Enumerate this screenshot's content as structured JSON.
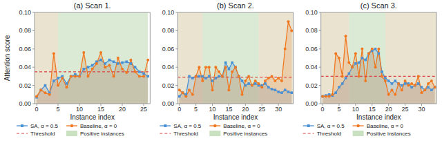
{
  "chart_data": [
    {
      "type": "line",
      "title": "(a) Scan 1.",
      "x_label": "Instance index",
      "y_label": "Attention score",
      "x": [
        0,
        1,
        2,
        3,
        4,
        5,
        6,
        7,
        8,
        9,
        10,
        11,
        12,
        13,
        14,
        15,
        16,
        17,
        18,
        19,
        20,
        21,
        22,
        23,
        24,
        25,
        26
      ],
      "series": [
        {
          "name": "SA, α = 0.5",
          "color": "#4a90d4",
          "marker": "square",
          "values": [
            0.007,
            0.015,
            0.02,
            0.012,
            0.025,
            0.028,
            0.03,
            0.022,
            0.03,
            0.032,
            0.03,
            0.038,
            0.04,
            0.042,
            0.046,
            0.048,
            0.044,
            0.048,
            0.046,
            0.044,
            0.045,
            0.046,
            0.044,
            0.04,
            0.035,
            0.033,
            0.03
          ]
        },
        {
          "name": "Baseline, α = 0",
          "color": "#f07820",
          "marker": "circle",
          "values": [
            0.008,
            0.015,
            0.012,
            0.01,
            0.055,
            0.02,
            0.028,
            0.018,
            0.03,
            0.03,
            0.03,
            0.056,
            0.03,
            0.038,
            0.044,
            0.056,
            0.04,
            0.042,
            0.03,
            0.05,
            0.038,
            0.034,
            0.048,
            0.035,
            0.03,
            0.03,
            0.048
          ]
        }
      ],
      "hlines": [
        {
          "name": "Threshold",
          "value": 0.035,
          "color": "#d94040",
          "line_style": "dashed"
        }
      ],
      "regions": [
        {
          "start": -0.5,
          "end": 5,
          "color": "#c8b888"
        },
        {
          "name": "Positive instances",
          "start": 5,
          "end": 26,
          "color": "#9dc88d"
        }
      ],
      "xlim": [
        -0.5,
        26.5
      ],
      "xticks": [
        0,
        5,
        10,
        15,
        20,
        25
      ],
      "ylim": [
        0.0,
        0.1
      ],
      "yticks": [
        {
          "value": 0.0,
          "label": "0.00"
        },
        {
          "value": 0.02,
          "label": "0.02"
        },
        {
          "value": 0.04,
          "label": "0.04"
        },
        {
          "value": 0.06,
          "label": "0.06"
        },
        {
          "value": 0.08,
          "label": "0.08"
        },
        {
          "value": 0.1,
          "label": "0.10"
        }
      ],
      "grid": false,
      "legend": "bottom"
    },
    {
      "type": "line",
      "title": "(b) Scan 2.",
      "x_label": "Instance index",
      "x": [
        0,
        1,
        2,
        3,
        4,
        5,
        6,
        7,
        8,
        9,
        10,
        11,
        12,
        13,
        14,
        15,
        16,
        17,
        18,
        19,
        20,
        21,
        22,
        23,
        24,
        25,
        26,
        27,
        28,
        29,
        30,
        31,
        32,
        33,
        34
      ],
      "series": [
        {
          "name": "SA, α = 0.5",
          "color": "#4a90d4",
          "marker": "square",
          "values": [
            0.008,
            0.012,
            0.01,
            0.03,
            0.028,
            0.03,
            0.03,
            0.03,
            0.028,
            0.03,
            0.025,
            0.028,
            0.03,
            0.03,
            0.045,
            0.038,
            0.045,
            0.04,
            0.03,
            0.025,
            0.02,
            0.022,
            0.02,
            0.022,
            0.02,
            0.02,
            0.022,
            0.018,
            0.016,
            0.015,
            0.013,
            0.012,
            0.015,
            0.013,
            0.012
          ]
        },
        {
          "name": "Baseline, α = 0",
          "color": "#f07820",
          "marker": "circle",
          "values": [
            0.015,
            0.012,
            0.008,
            0.015,
            0.01,
            0.03,
            0.04,
            0.025,
            0.04,
            0.04,
            0.015,
            0.04,
            0.035,
            0.03,
            0.04,
            0.015,
            0.035,
            0.04,
            0.03,
            0.01,
            0.025,
            0.03,
            0.02,
            0.025,
            0.022,
            0.018,
            0.025,
            0.028,
            0.03,
            0.025,
            0.028,
            0.025,
            0.06,
            0.09,
            0.08
          ]
        }
      ],
      "hlines": [
        {
          "name": "Threshold",
          "value": 0.029,
          "color": "#d94040",
          "line_style": "dashed"
        }
      ],
      "regions": [
        {
          "start": -0.5,
          "end": 7,
          "color": "#c8b888"
        },
        {
          "start": 24,
          "end": 34.5,
          "color": "#c8b888"
        },
        {
          "name": "Positive instances",
          "start": 7,
          "end": 24,
          "color": "#9dc88d"
        }
      ],
      "xlim": [
        -0.5,
        34.5
      ],
      "xticks": [
        0,
        5,
        10,
        15,
        20,
        25,
        30
      ],
      "ylim": [
        0.0,
        0.1
      ],
      "yticks": [
        {
          "value": 0.0,
          "label": "0.00"
        },
        {
          "value": 0.02,
          "label": "0.02"
        },
        {
          "value": 0.04,
          "label": "0.04"
        },
        {
          "value": 0.06,
          "label": "0.06"
        },
        {
          "value": 0.08,
          "label": "0.08"
        },
        {
          "value": 0.1,
          "label": "0.10"
        }
      ],
      "grid": false,
      "legend": "bottom"
    },
    {
      "type": "line",
      "title": "(c) Scan 3.",
      "x_label": "Instance index",
      "x": [
        0,
        1,
        2,
        3,
        4,
        5,
        6,
        7,
        8,
        9,
        10,
        11,
        12,
        13,
        14,
        15,
        16,
        17,
        18,
        19,
        20,
        21,
        22,
        23,
        24,
        25,
        26,
        27,
        28,
        29,
        30,
        31,
        32,
        33,
        34
      ],
      "series": [
        {
          "name": "SA, α = 0.5",
          "color": "#4a90d4",
          "marker": "square",
          "values": [
            0.008,
            0.009,
            0.01,
            0.009,
            0.012,
            0.018,
            0.022,
            0.028,
            0.033,
            0.04,
            0.044,
            0.045,
            0.05,
            0.048,
            0.055,
            0.058,
            0.06,
            0.055,
            0.035,
            0.028,
            0.025,
            0.022,
            0.025,
            0.022,
            0.02,
            0.022,
            0.022,
            0.018,
            0.02,
            0.022,
            0.018,
            0.015,
            0.018,
            0.015,
            0.018
          ]
        },
        {
          "name": "Baseline, α = 0",
          "color": "#f07820",
          "marker": "circle",
          "values": [
            0.008,
            0.008,
            0.008,
            0.01,
            0.055,
            0.05,
            0.03,
            0.074,
            0.045,
            0.04,
            0.055,
            0.03,
            0.06,
            0.025,
            0.055,
            0.06,
            0.04,
            0.06,
            0.03,
            0.025,
            0.01,
            0.015,
            0.01,
            0.022,
            0.015,
            0.025,
            0.02,
            0.022,
            0.02,
            0.03,
            0.012,
            0.015,
            0.022,
            0.025,
            0.018
          ]
        }
      ],
      "hlines": [
        {
          "name": "Threshold",
          "value": 0.03,
          "color": "#d94040",
          "line_style": "dashed"
        }
      ],
      "regions": [
        {
          "start": -0.5,
          "end": 8,
          "color": "#c8b888"
        },
        {
          "start": 19,
          "end": 34.5,
          "color": "#c8b888"
        },
        {
          "name": "Positive instances",
          "start": 8,
          "end": 19,
          "color": "#9dc88d"
        }
      ],
      "xlim": [
        -0.5,
        34.5
      ],
      "xticks": [
        0,
        5,
        10,
        15,
        20,
        25,
        30
      ],
      "ylim": [
        0.0,
        0.1
      ],
      "yticks": [
        {
          "value": 0.0,
          "label": "0.00"
        },
        {
          "value": 0.02,
          "label": "0.02"
        },
        {
          "value": 0.04,
          "label": "0.04"
        },
        {
          "value": 0.06,
          "label": "0.06"
        },
        {
          "value": 0.08,
          "label": "0.08"
        },
        {
          "value": 0.1,
          "label": "0.10"
        }
      ],
      "grid": false,
      "legend": "bottom"
    }
  ]
}
